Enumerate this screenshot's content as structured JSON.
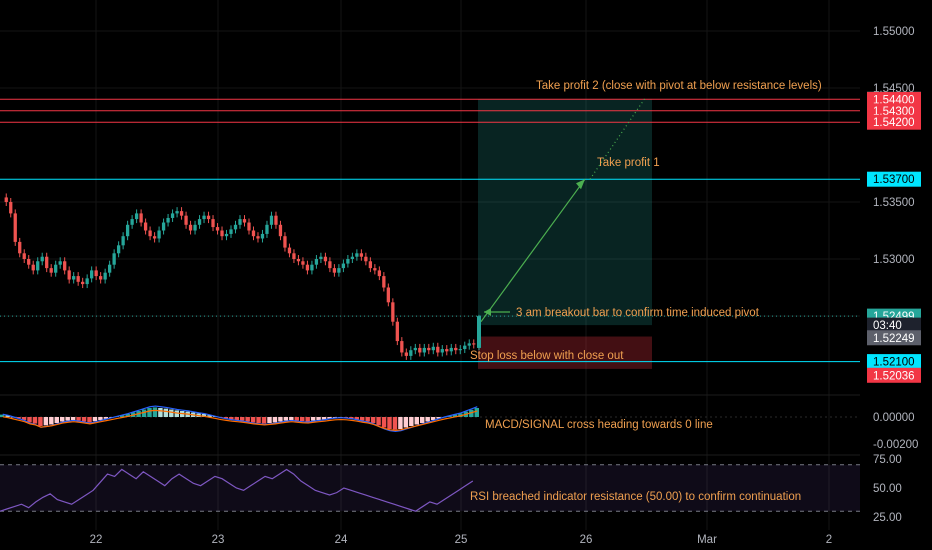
{
  "chart_data": {
    "type": "candlestick",
    "price_axis": {
      "range": [
        1.5195,
        1.5515
      ],
      "ticks": [
        "1.55000",
        "1.54500",
        "1.53500",
        "1.53000",
        "1.52500"
      ]
    },
    "time_axis": {
      "ticks": [
        "22",
        "23",
        "24",
        "25",
        "26",
        "Mar",
        "2"
      ]
    },
    "price_badges": [
      {
        "label": "1.54401",
        "value": 1.54401,
        "color": "#26a69a"
      },
      {
        "label": "1.54400",
        "value": 1.544,
        "color": "#f23645"
      },
      {
        "label": "1.54300",
        "value": 1.543,
        "color": "#f23645"
      },
      {
        "label": "1.54200",
        "value": 1.542,
        "color": "#f23645"
      },
      {
        "label": "1.53700",
        "value": 1.537,
        "color": "#00e5ff"
      },
      {
        "label": "1.52499",
        "value": 1.52499,
        "color": "#26a69a"
      },
      {
        "label": "03:40",
        "value": 1.5242,
        "color": "#1e222d"
      },
      {
        "label": "1.52249",
        "value": 1.52309,
        "color": "#5d606b"
      },
      {
        "label": "1.52100",
        "value": 1.521,
        "color": "#00e5ff"
      },
      {
        "label": "1.52036",
        "value": 1.5198,
        "color": "#f23645"
      }
    ],
    "horizontal_lines": [
      {
        "value": 1.54401,
        "color": "#f23645"
      },
      {
        "value": 1.543,
        "color": "#f23645"
      },
      {
        "value": 1.542,
        "color": "#f23645"
      },
      {
        "value": 1.537,
        "color": "#00e5ff"
      },
      {
        "value": 1.521,
        "color": "#00e5ff"
      }
    ],
    "candles_close": [
      1.535,
      1.534,
      1.5315,
      1.5305,
      1.53,
      1.5295,
      1.529,
      1.5298,
      1.5302,
      1.5292,
      1.5288,
      1.5295,
      1.5298,
      1.529,
      1.5282,
      1.5285,
      1.528,
      1.5278,
      1.5283,
      1.529,
      1.5285,
      1.5282,
      1.5288,
      1.5295,
      1.5305,
      1.5312,
      1.532,
      1.533,
      1.5335,
      1.534,
      1.5332,
      1.5325,
      1.532,
      1.5318,
      1.5325,
      1.5332,
      1.5336,
      1.534,
      1.5342,
      1.5338,
      1.533,
      1.5325,
      1.533,
      1.5335,
      1.5338,
      1.5335,
      1.5328,
      1.5325,
      1.532,
      1.5322,
      1.5326,
      1.533,
      1.5335,
      1.5332,
      1.5325,
      1.532,
      1.5318,
      1.5322,
      1.533,
      1.5338,
      1.533,
      1.532,
      1.531,
      1.5305,
      1.53,
      1.5298,
      1.5295,
      1.529,
      1.5295,
      1.53,
      1.5302,
      1.5298,
      1.5292,
      1.5288,
      1.5292,
      1.5296,
      1.53,
      1.5302,
      1.5305,
      1.5302,
      1.5298,
      1.5292,
      1.529,
      1.5285,
      1.5275,
      1.5262,
      1.5245,
      1.5228,
      1.5218,
      1.5215,
      1.522,
      1.5222,
      1.5218,
      1.5222,
      1.522,
      1.5223,
      1.5218,
      1.5221,
      1.5219,
      1.5222,
      1.522,
      1.5221,
      1.5224,
      1.5226,
      1.5225
    ],
    "breakout_bar": {
      "open": 1.5222,
      "close": 1.52499,
      "high": 1.5251,
      "low": 1.522
    },
    "macd": {
      "axis_ticks": [
        "0.00000",
        "-0.00200"
      ],
      "histogram": [
        0.08,
        0.05,
        0.0,
        -0.05,
        -0.1,
        -0.18,
        -0.22,
        -0.3,
        -0.28,
        -0.25,
        -0.2,
        -0.15,
        -0.12,
        -0.1,
        -0.12,
        -0.15,
        -0.18,
        -0.14,
        -0.1,
        -0.06,
        -0.02,
        0.02,
        0.06,
        0.1,
        0.15,
        0.2,
        0.25,
        0.3,
        0.32,
        0.3,
        0.28,
        0.25,
        0.22,
        0.2,
        0.18,
        0.15,
        0.12,
        0.1,
        0.06,
        0.02,
        -0.02,
        -0.05,
        -0.08,
        -0.1,
        -0.12,
        -0.15,
        -0.18,
        -0.2,
        -0.22,
        -0.2,
        -0.18,
        -0.15,
        -0.12,
        -0.1,
        -0.12,
        -0.14,
        -0.15,
        -0.12,
        -0.1,
        -0.08,
        -0.05,
        -0.03,
        -0.02,
        -0.03,
        -0.05,
        -0.08,
        -0.12,
        -0.15,
        -0.2,
        -0.28,
        -0.35,
        -0.4,
        -0.42,
        -0.4,
        -0.35,
        -0.3,
        -0.25,
        -0.2,
        -0.15,
        -0.1,
        -0.05,
        0.0,
        0.04,
        0.08,
        0.12,
        0.18,
        0.24,
        0.3
      ]
    },
    "rsi": {
      "axis_ticks": [
        "75.00",
        "50.00",
        "25.00"
      ],
      "upper_band": 70,
      "lower_band": 30,
      "values": [
        30,
        32,
        34,
        36,
        33,
        38,
        42,
        45,
        40,
        38,
        36,
        40,
        44,
        48,
        55,
        62,
        60,
        66,
        62,
        58,
        64,
        60,
        56,
        52,
        58,
        62,
        58,
        54,
        52,
        56,
        60,
        58,
        54,
        50,
        48,
        52,
        56,
        60,
        58,
        62,
        66,
        62,
        56,
        52,
        48,
        46,
        44,
        46,
        50,
        48,
        46,
        44,
        42,
        40,
        38,
        36,
        34,
        32,
        30,
        34,
        38,
        36,
        40,
        44,
        48,
        52,
        56
      ]
    },
    "trade_zones": {
      "target": {
        "top": 1.54401,
        "bottom": 1.5242,
        "color": "#26a69a"
      },
      "stop": {
        "top": 1.5232,
        "bottom": 1.52036,
        "color": "#f23645"
      }
    }
  },
  "annotations": {
    "tp2": "Take profit 2 (close with pivot at below resistance levels)",
    "tp1": "Take profit 1",
    "breakout": "3 am breakout bar to confirm time induced pivot",
    "stop_loss": "Stop loss below with close out",
    "macd": "MACD/SIGNAL cross heading towards 0 line",
    "rsi": "RSI breached indicator resistance (50.00) to confirm continuation"
  }
}
